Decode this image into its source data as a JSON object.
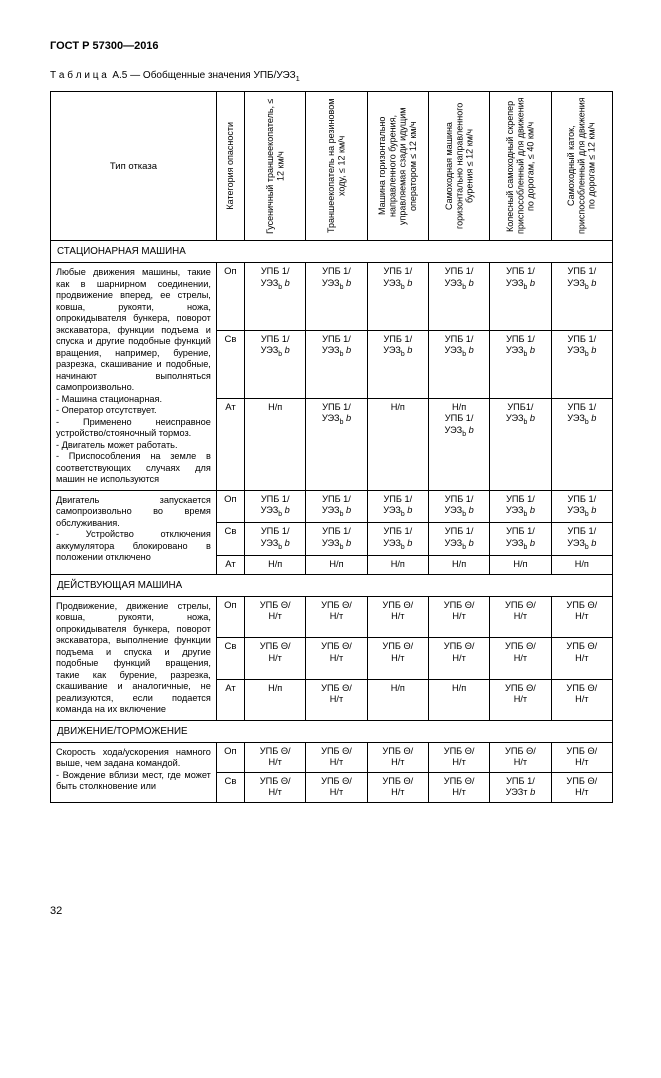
{
  "doc_id": "ГОСТ Р 57300—2016",
  "table_label_prefix": "Т а б л и ц а",
  "table_label_rest": "А.5 — Обобщенные значения УПБ/УЭЗ",
  "table_label_sub": "1",
  "headers": {
    "h0": "Тип отказа",
    "h1": "Категория опасности",
    "h2": "Гусеничный траншеекопатель, ≤ 12 км/ч",
    "h3": "Траншеекопатель на резиновом ходу, ≤ 12 км/ч",
    "h4": "Машина горизонтально направленного бурения, управляемая сзади идущим оператором ≤ 12 км/ч",
    "h5": "Самоходная машина горизонтально направленного бурения ≤ 12 км/ч",
    "h6": "Колесный самоходный скрепер приспособленный для движения по дорогам, ≤ 40 км/ч",
    "h7": "Самоходный каток, приспособленный для движения по дорогам ≤ 12 км/ч"
  },
  "sections": {
    "s1": "СТАЦИОНАРНАЯ МАШИНА",
    "s2": "ДЕЙСТВУЮЩАЯ МАШИНА",
    "s3": "ДВИЖЕНИЕ/ТОРМОЖЕНИЕ"
  },
  "values": {
    "upb_uez_b": "УПБ 1/\nУЭЗ",
    "upb_uez_b_suffix": "b",
    "hn": "Н/п",
    "upb_theta_nt": "УПБ Θ/\nН/т",
    "upb1_uez_b_one": "УПБ1/\nУЭЗ",
    "upb1_uezt_b": "УПБ 1/\nУЭЗт"
  },
  "cats": {
    "op": "Оп",
    "sv": "Св",
    "at": "Ат"
  },
  "rows": {
    "r1": "Любые движения машины, такие как в шарнирном соединении, продвижение вперед, ее стрелы, ковша, рукояти, ножа, опрокидывателя бункера, поворот экскаватора, функции подъема и спуска и другие подобные функций вращения, например, бурение, разрезка, скашивание и подобные, начинают выполняться самопроизвольно.\n- Машина стационарная.\n- Оператор отсутствует.\n- Применено     неисправное устройство/стояночный   тормоз.\n- Двигатель может работать.\n- Приспособления на земле в соответствующих случаях для машин не используются",
    "r2": "Двигатель запускается самопроизвольно во время обслуживания.\n- Устройство отключения аккумулятора блокировано в положении отключено",
    "r3": "Продвижение, движение стрелы, ковша, рукояти, ножа, опрокидывателя бункера, поворот экскаватора, выполнение функции подъема и спуска и другие подобные функций вращения, такие как бурение, разрезка, скашивание и аналогичные, не реализуются, если подается команда на их включение",
    "r4": "Скорость хода/ускорения намного выше, чем задана командой.\n- Вождение вблизи мест, где может быть столкновение или"
  },
  "page_number": "32"
}
